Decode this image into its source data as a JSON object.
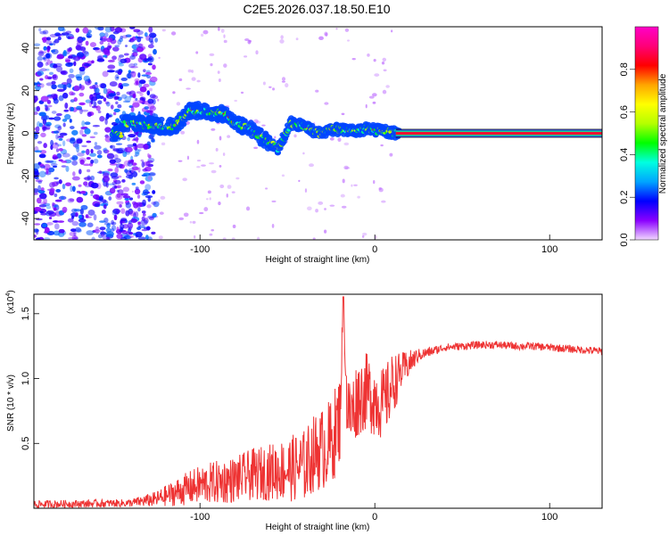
{
  "title": "C2E5.2026.037.18.50.E10",
  "chart_data": [
    {
      "type": "heatmap",
      "xlabel": "Height of straight line (km)",
      "ylabel": "Frequency (Hz)",
      "xlim": [
        -195,
        130
      ],
      "ylim": [
        -50,
        50
      ],
      "x_ticks": [
        -100,
        0,
        100
      ],
      "y_ticks": [
        -40,
        -20,
        0,
        20,
        40
      ],
      "colorbar": {
        "label": "Normalized spectral amplitude",
        "range": [
          0,
          1
        ],
        "ticks": [
          0.0,
          0.2,
          0.4,
          0.6,
          0.8
        ],
        "colors": [
          "#f2d9ff",
          "#8a00ff",
          "#0000ff",
          "#00a5ff",
          "#00ffe0",
          "#00ff00",
          "#b4ff00",
          "#ffff00",
          "#ffa500",
          "#ff0000",
          "#ff0078",
          "#ff00c8"
        ]
      },
      "signal_trace": [
        {
          "x": -145,
          "y": 5
        },
        {
          "x": -130,
          "y": 4
        },
        {
          "x": -115,
          "y": 3
        },
        {
          "x": -105,
          "y": 11
        },
        {
          "x": -95,
          "y": 10
        },
        {
          "x": -85,
          "y": 9
        },
        {
          "x": -80,
          "y": 4
        },
        {
          "x": -72,
          "y": 3
        },
        {
          "x": -65,
          "y": -2
        },
        {
          "x": -55,
          "y": -7
        },
        {
          "x": -48,
          "y": 5
        },
        {
          "x": -40,
          "y": 3
        },
        {
          "x": -32,
          "y": 0
        },
        {
          "x": -25,
          "y": 2
        },
        {
          "x": -15,
          "y": 1
        },
        {
          "x": -5,
          "y": 2
        },
        {
          "x": 5,
          "y": 1
        },
        {
          "x": 12,
          "y": 0
        },
        {
          "x": 130,
          "y": 0
        }
      ],
      "constant_band": {
        "x_start": 12,
        "x_end": 130,
        "y": 0
      }
    },
    {
      "type": "line",
      "xlabel": "Height of straight line (km)",
      "ylabel": "SNR (10 * v/v)",
      "y_scale_label": "(x10",
      "y_scale_exp": "4",
      "y_scale_suffix": ")",
      "xlim": [
        -195,
        130
      ],
      "ylim": [
        0,
        1.65
      ],
      "x_ticks": [
        -100,
        0,
        100
      ],
      "y_ticks": [
        0.5,
        1.0,
        1.5
      ],
      "y_tick_labels": [
        "0.5",
        "1.0",
        "1.5"
      ],
      "series": [
        {
          "name": "SNR",
          "color": "#ee3333",
          "x": [
            -195,
            -140,
            -125,
            -110,
            -100,
            -90,
            -80,
            -70,
            -60,
            -50,
            -40,
            -35,
            -30,
            -25,
            -20,
            -18,
            -16,
            -14,
            -10,
            -5,
            0,
            5,
            10,
            15,
            20,
            25,
            30,
            40,
            50,
            60,
            70,
            80,
            90,
            100,
            110,
            120,
            130
          ],
          "values": [
            0.03,
            0.04,
            0.07,
            0.14,
            0.18,
            0.2,
            0.22,
            0.26,
            0.28,
            0.3,
            0.33,
            0.42,
            0.46,
            0.5,
            0.7,
            1.63,
            0.8,
            0.7,
            0.85,
            0.9,
            0.85,
            0.8,
            0.95,
            1.05,
            1.12,
            1.18,
            1.2,
            1.24,
            1.25,
            1.26,
            1.26,
            1.25,
            1.25,
            1.24,
            1.23,
            1.22,
            1.21
          ],
          "noise_amplitude": [
            0.03,
            0.03,
            0.06,
            0.12,
            0.15,
            0.17,
            0.18,
            0.2,
            0.22,
            0.25,
            0.28,
            0.3,
            0.32,
            0.35,
            0.35,
            0.0,
            0.3,
            0.3,
            0.3,
            0.3,
            0.3,
            0.28,
            0.25,
            0.15,
            0.1,
            0.05,
            0.04,
            0.03,
            0.03,
            0.03,
            0.03,
            0.03,
            0.03,
            0.03,
            0.03,
            0.03,
            0.03
          ]
        }
      ]
    }
  ]
}
